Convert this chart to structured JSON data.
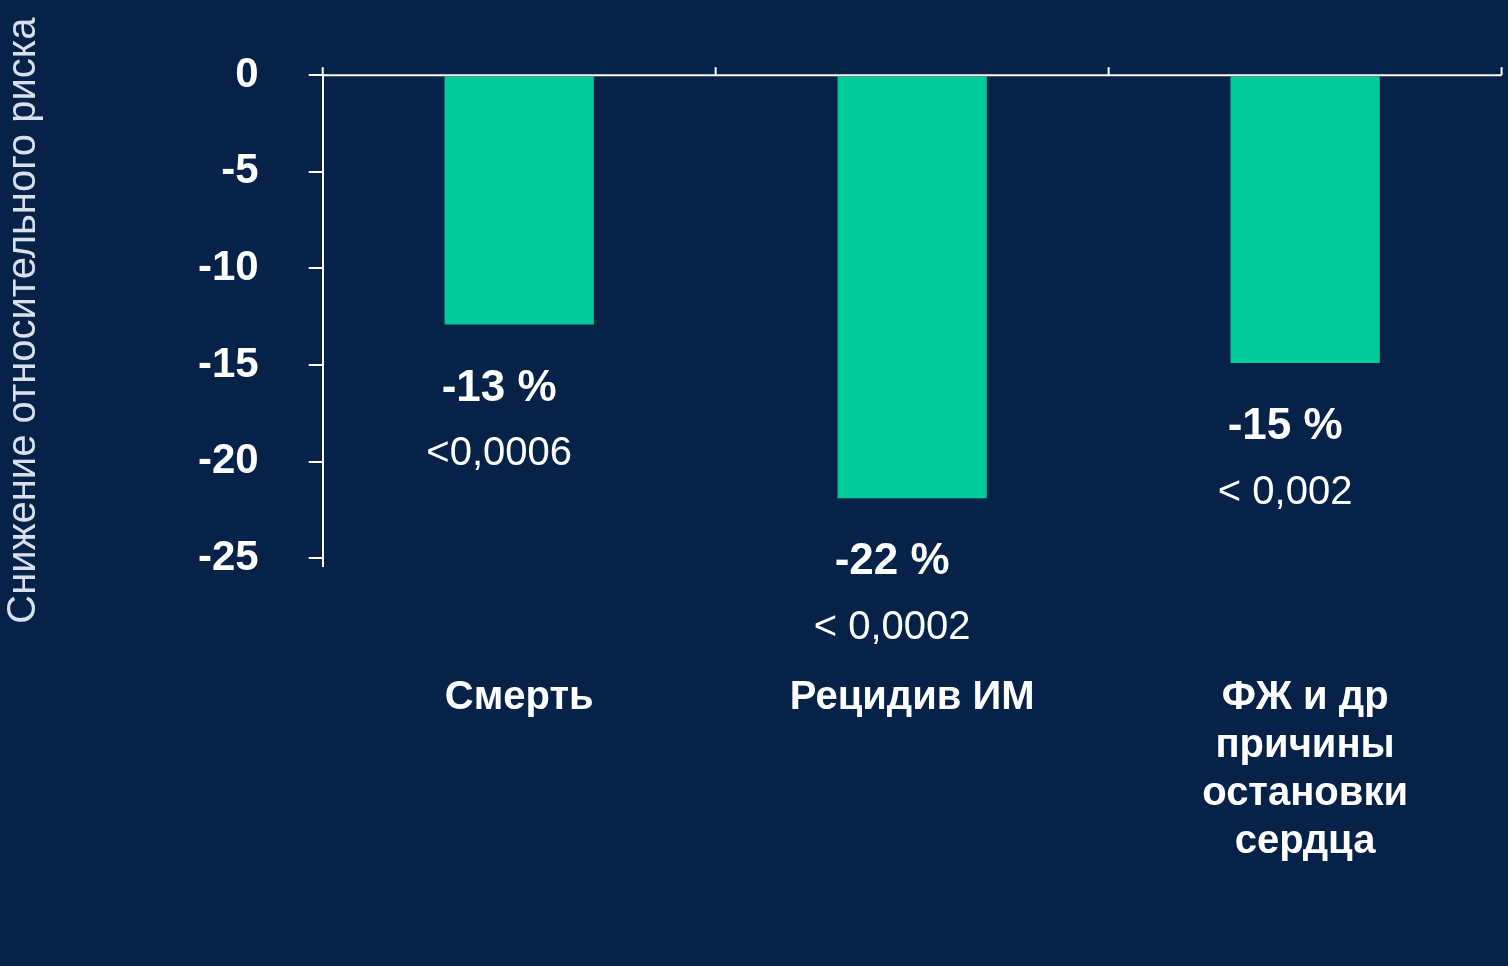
{
  "chart_data": {
    "type": "bar",
    "ylabel": "Снижение относительного риска",
    "categories": [
      "Смерть",
      "Рецидив ИМ",
      "ФЖ и др причины остановки сердца"
    ],
    "values": [
      -13,
      -22,
      -15
    ],
    "color": "#00cc99",
    "value_labels": [
      "-13 %",
      "-22 %",
      "-15 %"
    ],
    "annotations": [
      {
        "text": "<0,0006",
        "x": "Смерть",
        "y": -13
      },
      {
        "text": "< 0,0002",
        "x": "Рецидив ИМ",
        "y": -22
      },
      {
        "text": "< 0,002",
        "x": "ФЖ и др причины остановки сердца",
        "y": -15
      }
    ],
    "ylim": [
      -25.4,
      0
    ],
    "yticks": [
      0,
      -5,
      -10,
      -15,
      -20,
      -25
    ]
  }
}
